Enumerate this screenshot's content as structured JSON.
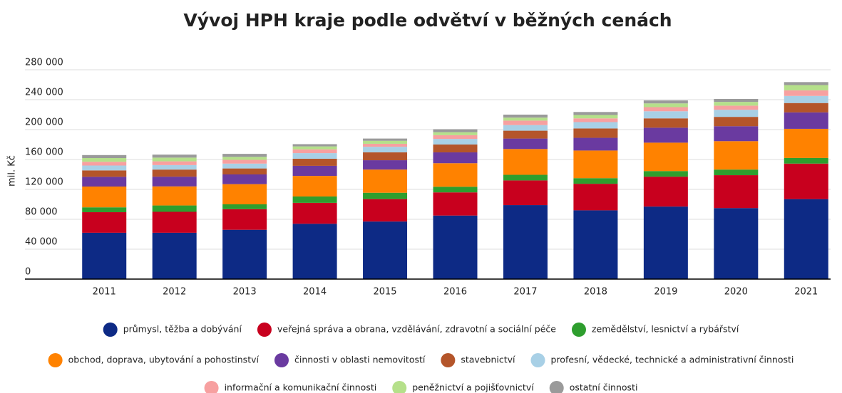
{
  "chart_data": {
    "type": "stacked_bar",
    "title": "Vývoj HPH kraje podle odvětví v běžných cenách",
    "y_label": "mil. Kč",
    "categories": [
      "2011",
      "2012",
      "2013",
      "2014",
      "2015",
      "2016",
      "2017",
      "2018",
      "2019",
      "2020",
      "2021"
    ],
    "ylim": [
      0,
      280000
    ],
    "yticks": [
      0,
      {
        "value": 40000,
        "label": "40 000"
      },
      {
        "value": 80000,
        "label": "80 000"
      },
      {
        "value": 120000,
        "label": "120 000"
      },
      {
        "value": 160000,
        "label": "160 000"
      },
      {
        "value": 200000,
        "label": "200 000"
      },
      {
        "value": 240000,
        "label": "240 000"
      },
      {
        "value": 280000,
        "label": "280 000"
      }
    ],
    "grid": true,
    "legend": "bottom",
    "series": [
      {
        "name": "průmysl, těžba a dobývání",
        "color": "#0d2a85",
        "values": [
          62000,
          62000,
          66000,
          74000,
          77000,
          85000,
          99000,
          92000,
          97000,
          95000,
          107000
        ]
      },
      {
        "name": "veřejná správa a obrana, vzdělávání, zdravotní a sociální péče",
        "color": "#c8001e",
        "values": [
          27500,
          28000,
          27500,
          28000,
          30000,
          31000,
          33000,
          35500,
          40000,
          44000,
          47500
        ]
      },
      {
        "name": "zemědělství, lesnictví a rybářství",
        "color": "#2e9e2e",
        "values": [
          6500,
          8500,
          6500,
          8500,
          8500,
          7500,
          7500,
          7500,
          7500,
          7500,
          7500
        ]
      },
      {
        "name": "obchod, doprava, ubytování a pohostinství",
        "color": "#ff8200",
        "values": [
          27800,
          25500,
          27000,
          27500,
          31000,
          31500,
          34500,
          37000,
          38000,
          38000,
          39000
        ]
      },
      {
        "name": "činnosti v oblasti nemovitostí",
        "color": "#6a3aa0",
        "values": [
          13000,
          13000,
          13000,
          13500,
          12500,
          14500,
          14000,
          17000,
          20000,
          20000,
          22000
        ]
      },
      {
        "name": "stavebnictví",
        "color": "#b4552a",
        "values": [
          8600,
          9500,
          8000,
          9500,
          10500,
          10500,
          10500,
          12500,
          12500,
          12500,
          12500
        ]
      },
      {
        "name": "profesní, vědecké, technické a administrativní činnosti",
        "color": "#a8d0e6",
        "values": [
          6500,
          6000,
          6500,
          7500,
          7500,
          7500,
          7500,
          8500,
          9500,
          9500,
          9500
        ]
      },
      {
        "name": "informační a komunikační činnosti",
        "color": "#f7a0a0",
        "values": [
          5000,
          5000,
          5000,
          5000,
          4000,
          5000,
          6000,
          5000,
          5500,
          5500,
          7500
        ]
      },
      {
        "name": "peněžnictví a pojišťovnictví",
        "color": "#b5e08a",
        "values": [
          5000,
          5000,
          4000,
          4000,
          4000,
          4000,
          4000,
          4500,
          5000,
          5000,
          7000
        ]
      },
      {
        "name": "ostatní činnosti",
        "color": "#9a9a9a",
        "values": [
          4000,
          4000,
          4000,
          3000,
          3000,
          4000,
          4000,
          4000,
          4000,
          4000,
          4000
        ]
      }
    ]
  }
}
